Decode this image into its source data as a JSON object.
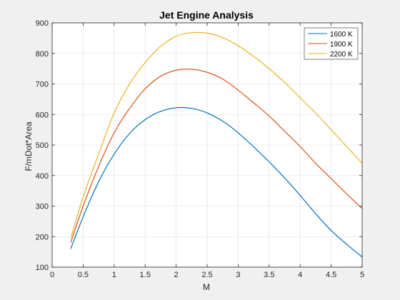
{
  "chart_data": {
    "type": "line",
    "title": "Jet Engine Analysis",
    "xlabel": "M",
    "ylabel": "F/mDot*Area",
    "xlim": [
      0,
      5
    ],
    "ylim": [
      100,
      900
    ],
    "xticks": [
      0,
      0.5,
      1,
      1.5,
      2,
      2.5,
      3,
      3.5,
      4,
      4.5,
      5
    ],
    "xtick_labels": [
      "0",
      "0.5",
      "1",
      "1.5",
      "2",
      "2.5",
      "3",
      "3.5",
      "4",
      "4.5",
      "5"
    ],
    "yticks": [
      100,
      200,
      300,
      400,
      500,
      600,
      700,
      800,
      900
    ],
    "ytick_labels": [
      "100",
      "200",
      "300",
      "400",
      "500",
      "600",
      "700",
      "800",
      "900"
    ],
    "grid": true,
    "legend_location": "top-right",
    "x": [
      0.3,
      0.5,
      0.75,
      1.0,
      1.25,
      1.5,
      1.75,
      2.0,
      2.25,
      2.5,
      2.75,
      3.0,
      3.25,
      3.5,
      3.75,
      4.0,
      4.25,
      4.5,
      4.75,
      5.0
    ],
    "series": [
      {
        "name": "1600 K",
        "color": "#0072bd",
        "values": [
          160,
          265,
          380,
          470,
          538,
          583,
          610,
          622,
          620,
          605,
          578,
          540,
          494,
          445,
          392,
          335,
          275,
          220,
          175,
          133
        ]
      },
      {
        "name": "1900 K",
        "color": "#d95319",
        "values": [
          180,
          300,
          430,
          540,
          620,
          684,
          725,
          745,
          748,
          738,
          716,
          680,
          638,
          595,
          545,
          495,
          440,
          390,
          340,
          292
        ]
      },
      {
        "name": "2200 K",
        "color": "#edb120",
        "values": [
          195,
          330,
          470,
          605,
          700,
          770,
          823,
          856,
          868,
          866,
          852,
          825,
          790,
          750,
          705,
          655,
          605,
          550,
          495,
          440
        ]
      }
    ]
  }
}
